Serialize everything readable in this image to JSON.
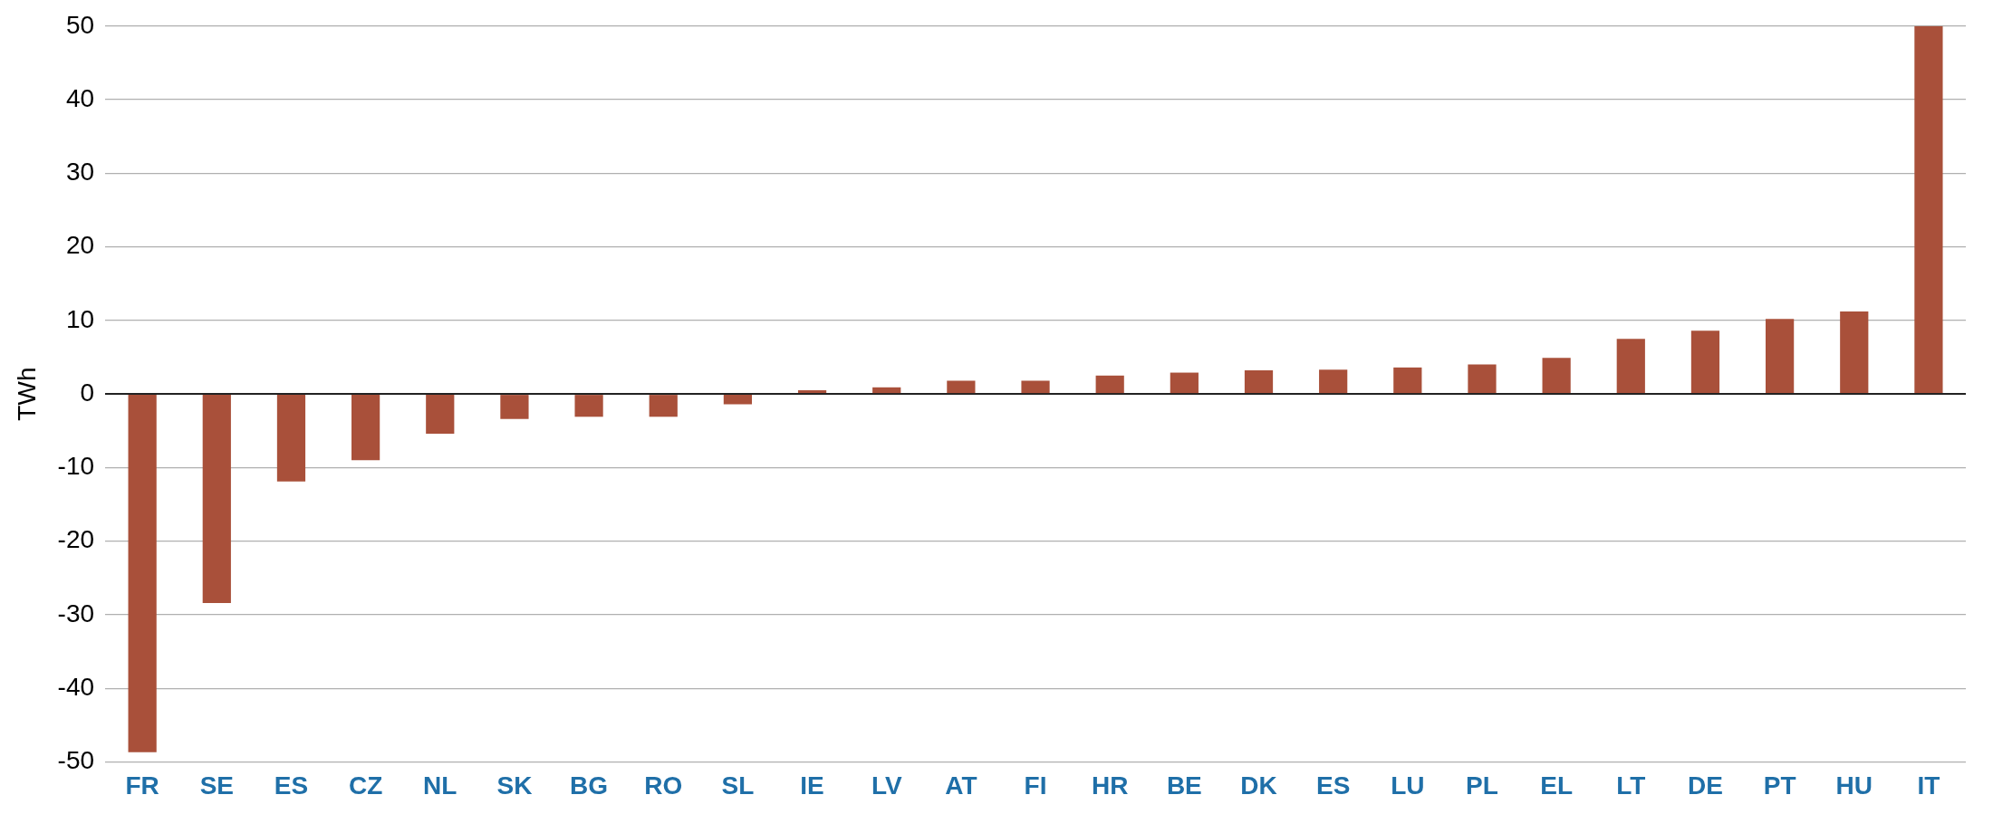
{
  "chart_data": {
    "type": "bar",
    "ylabel": "TWh",
    "categories": [
      "FR",
      "SE",
      "ES",
      "CZ",
      "NL",
      "SK",
      "BG",
      "RO",
      "SL",
      "IE",
      "LV",
      "AT",
      "FI",
      "HR",
      "BE",
      "DK",
      "ES",
      "LU",
      "PL",
      "EL",
      "LT",
      "DE",
      "PT",
      "HU",
      "IT"
    ],
    "values": [
      -48.7,
      -28.4,
      -11.9,
      -9,
      -5.4,
      -3.4,
      -3.1,
      -3.1,
      -1.4,
      0.5,
      0.9,
      1.8,
      1.8,
      2.5,
      2.9,
      3.2,
      3.3,
      3.6,
      4,
      4.9,
      7.5,
      8.6,
      10.2,
      11.2,
      50
    ],
    "color": "#a9503a",
    "ylim": [
      -50,
      50
    ],
    "yticks": [
      -50,
      -40,
      -30,
      -20,
      -10,
      0,
      10,
      20,
      30,
      40,
      50
    ],
    "grid": "y",
    "legend": false
  }
}
